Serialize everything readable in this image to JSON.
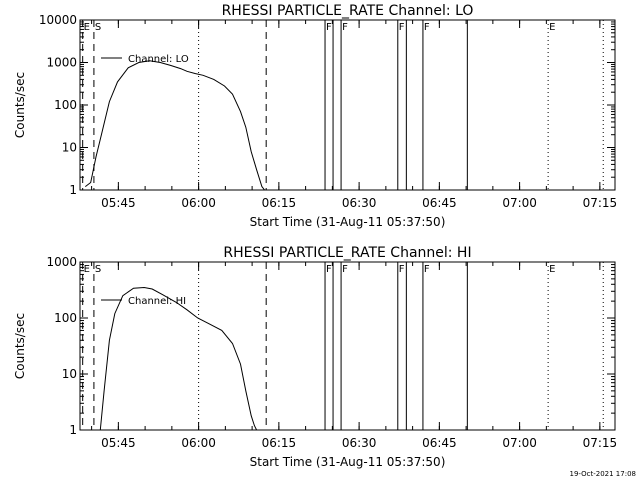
{
  "footer_timestamp": "19-Oct-2021 17:08",
  "chart_data": [
    {
      "type": "line",
      "title": "RHESSI PARTICLE_RATE Channel: LO",
      "xlabel": "Start Time (31-Aug-11 05:37:50)",
      "ylabel": "Counts/sec",
      "y_scale": "log",
      "xlim_minutes_after_start": [
        0,
        100
      ],
      "ylim": [
        1,
        10000
      ],
      "x_tick_labels": [
        "05:45",
        "06:00",
        "06:15",
        "06:30",
        "06:45",
        "07:00",
        "07:15"
      ],
      "x_tick_minutes_after_start": [
        7.17,
        22.17,
        37.17,
        52.17,
        67.17,
        82.17,
        97.17
      ],
      "y_tick_labels": [
        "1",
        "10",
        "100",
        "1000",
        "10000"
      ],
      "y_tick_values": [
        1,
        10,
        100,
        1000,
        10000
      ],
      "legend": {
        "label": "Channel: LO",
        "position": "top-left"
      },
      "series": [
        {
          "name": "Channel: LO",
          "x": [
            1.0,
            2.0,
            3.0,
            4.0,
            5.5,
            7.0,
            9.0,
            11.0,
            13.0,
            15.0,
            17.0,
            18.8,
            20.0,
            21.5,
            23.0,
            25.0,
            27.0,
            28.5,
            30.0,
            31.0,
            32.0,
            33.0,
            34.0,
            34.5
          ],
          "values": [
            1.2,
            1.5,
            6,
            20,
            120,
            350,
            750,
            1000,
            1100,
            1000,
            850,
            720,
            620,
            550,
            500,
            400,
            280,
            180,
            70,
            30,
            8,
            3,
            1.2,
            1
          ]
        }
      ],
      "vertical_markers": [
        {
          "label": "E",
          "minute": 0.5,
          "style": "dashed"
        },
        {
          "label": "S",
          "minute": 2.6,
          "style": "dashed"
        },
        {
          "label": "",
          "minute": 34.8,
          "style": "dashed"
        },
        {
          "label": "",
          "minute": 22.17,
          "style": "dotted"
        },
        {
          "label": "F",
          "minute": 45.8,
          "style": "solid"
        },
        {
          "label": "",
          "minute": 47.3,
          "style": "solid"
        },
        {
          "label": "F",
          "minute": 48.8,
          "style": "solid"
        },
        {
          "label": "F",
          "minute": 59.4,
          "style": "solid"
        },
        {
          "label": "",
          "minute": 61.0,
          "style": "solid"
        },
        {
          "label": "F",
          "minute": 64.1,
          "style": "solid"
        },
        {
          "label": "",
          "minute": 72.4,
          "style": "solid"
        },
        {
          "label": "E",
          "minute": 87.5,
          "style": "dotted"
        },
        {
          "label": "",
          "minute": 97.8,
          "style": "dotted"
        }
      ]
    },
    {
      "type": "line",
      "title": "RHESSI PARTICLE_RATE Channel: HI",
      "xlabel": "Start Time (31-Aug-11 05:37:50)",
      "ylabel": "Counts/sec",
      "y_scale": "log",
      "xlim_minutes_after_start": [
        0,
        100
      ],
      "ylim": [
        1,
        1000
      ],
      "x_tick_labels": [
        "05:45",
        "06:00",
        "06:15",
        "06:30",
        "06:45",
        "07:00",
        "07:15"
      ],
      "x_tick_minutes_after_start": [
        7.17,
        22.17,
        37.17,
        52.17,
        67.17,
        82.17,
        97.17
      ],
      "y_tick_labels": [
        "1",
        "10",
        "100",
        "1000"
      ],
      "y_tick_values": [
        1,
        10,
        100,
        1000
      ],
      "legend": {
        "label": "Channel: HI",
        "position": "top-left"
      },
      "series": [
        {
          "name": "Channel: HI",
          "x": [
            3.8,
            4.5,
            5.5,
            6.5,
            8.0,
            10.0,
            12.0,
            13.5,
            15.5,
            18.0,
            20.0,
            22.0,
            24.0,
            26.5,
            28.5,
            30.0,
            31.0,
            32.0,
            32.6,
            33.0
          ],
          "values": [
            1,
            5,
            40,
            120,
            250,
            340,
            350,
            330,
            260,
            190,
            140,
            100,
            80,
            60,
            35,
            15,
            5,
            1.8,
            1.2,
            1
          ]
        }
      ],
      "vertical_markers": [
        {
          "label": "E",
          "minute": 0.5,
          "style": "dashed"
        },
        {
          "label": "S",
          "minute": 2.6,
          "style": "dashed"
        },
        {
          "label": "",
          "minute": 34.8,
          "style": "dashed"
        },
        {
          "label": "",
          "minute": 22.17,
          "style": "dotted"
        },
        {
          "label": "F",
          "minute": 45.8,
          "style": "solid"
        },
        {
          "label": "",
          "minute": 47.3,
          "style": "solid"
        },
        {
          "label": "F",
          "minute": 48.8,
          "style": "solid"
        },
        {
          "label": "F",
          "minute": 59.4,
          "style": "solid"
        },
        {
          "label": "",
          "minute": 61.0,
          "style": "solid"
        },
        {
          "label": "F",
          "minute": 64.1,
          "style": "solid"
        },
        {
          "label": "",
          "minute": 72.4,
          "style": "solid"
        },
        {
          "label": "E",
          "minute": 87.5,
          "style": "dotted"
        },
        {
          "label": "",
          "minute": 97.8,
          "style": "dotted"
        }
      ]
    }
  ]
}
